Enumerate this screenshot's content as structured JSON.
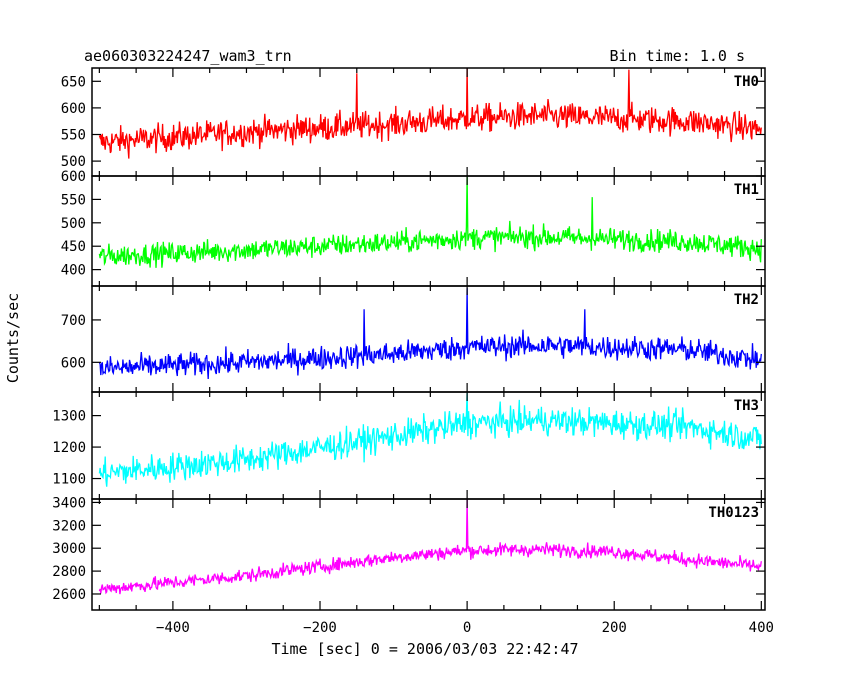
{
  "header": {
    "title": "ae060303224247_wam3_trn",
    "bin_time": "Bin time: 1.0 s"
  },
  "chart_data": {
    "type": "line",
    "xlabel": "Time [sec] 0 = 2006/03/03 22:42:47",
    "ylabel": "Counts/sec",
    "xlim": [
      -510,
      405
    ],
    "x_ticks": [
      -400,
      -200,
      0,
      200,
      400
    ],
    "x_tick_labels": [
      "−400",
      "−200",
      "0",
      "200",
      "400"
    ],
    "x_range": [
      -500,
      400
    ],
    "bin_seconds": 1.0,
    "panels": [
      {
        "name": "TH0",
        "color": "#ff0000",
        "ylim": [
          472,
          675
        ],
        "yticks": [
          500,
          550,
          600,
          650
        ],
        "ytick_labels": [
          "500",
          "550",
          "600",
          "650"
        ],
        "trend": {
          "x": [
            -500,
            -300,
            -100,
            0,
            100,
            300,
            400
          ],
          "y": [
            535,
            555,
            570,
            580,
            585,
            575,
            560
          ]
        },
        "noise": 24,
        "spikes": [
          {
            "x": 0,
            "y": 675
          },
          {
            "x": 220,
            "y": 672
          },
          {
            "x": -150,
            "y": 665
          }
        ]
      },
      {
        "name": "TH1",
        "color": "#00ff00",
        "ylim": [
          365,
          600
        ],
        "yticks": [
          400,
          450,
          500,
          550,
          600
        ],
        "ytick_labels": [
          "400",
          "450",
          "500",
          "550",
          "600"
        ],
        "trend": {
          "x": [
            -500,
            -300,
            -100,
            0,
            100,
            300,
            400
          ],
          "y": [
            428,
            442,
            458,
            468,
            470,
            460,
            445
          ]
        },
        "noise": 22,
        "spikes": [
          {
            "x": 0,
            "y": 600
          },
          {
            "x": 170,
            "y": 555
          }
        ]
      },
      {
        "name": "TH2",
        "color": "#0000ff",
        "ylim": [
          530,
          780
        ],
        "yticks": [
          600,
          700
        ],
        "ytick_labels": [
          "600",
          "700"
        ],
        "trend": {
          "x": [
            -500,
            -300,
            -100,
            0,
            100,
            300,
            400
          ],
          "y": [
            585,
            600,
            620,
            635,
            640,
            630,
            605
          ]
        },
        "noise": 26,
        "spikes": [
          {
            "x": 0,
            "y": 775
          },
          {
            "x": -140,
            "y": 725
          },
          {
            "x": 160,
            "y": 725
          }
        ]
      },
      {
        "name": "TH3",
        "color": "#00ffff",
        "ylim": [
          1035,
          1375
        ],
        "yticks": [
          1100,
          1200,
          1300
        ],
        "ytick_labels": [
          "1100",
          "1200",
          "1300"
        ],
        "trend": {
          "x": [
            -500,
            -300,
            -100,
            0,
            100,
            300,
            400
          ],
          "y": [
            1115,
            1160,
            1235,
            1275,
            1285,
            1265,
            1225
          ]
        },
        "noise": 42,
        "spikes": [
          {
            "x": 0,
            "y": 1375
          }
        ]
      },
      {
        "name": "TH0123",
        "color": "#ff00ff",
        "ylim": [
          2460,
          3430
        ],
        "yticks": [
          2600,
          2800,
          3000,
          3200,
          3400
        ],
        "ytick_labels": [
          "2600",
          "2800",
          "3000",
          "3200",
          "3400"
        ],
        "trend": {
          "x": [
            -500,
            -300,
            -100,
            0,
            100,
            200,
            300,
            400
          ],
          "y": [
            2640,
            2760,
            2920,
            2980,
            2990,
            2970,
            2900,
            2840
          ]
        },
        "noise": 55,
        "spikes": [
          {
            "x": 0,
            "y": 3430
          }
        ]
      }
    ]
  }
}
